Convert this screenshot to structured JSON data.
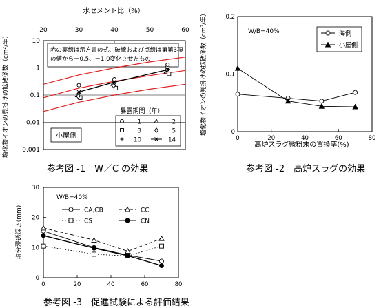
{
  "chart_data": [
    {
      "type": "scatter",
      "caption": "参考図 -1　W／C の効果",
      "top_axis_label": "水セメント比（%）",
      "top_ticks": [
        "20",
        "30",
        "40",
        "50",
        "60"
      ],
      "xlim": [
        20,
        60
      ],
      "ylabel": "塩化物イオンの見掛けの拡散係数（cm²/年）",
      "ylim": [
        0.001,
        10
      ],
      "ylog": true,
      "y_ticks": [
        "0.001",
        "0.01",
        "0.1",
        "1",
        "10"
      ],
      "grid": "horizontal",
      "note": "赤の実線は示方書の式、破線および点線は第第3項の値から－0.5、－1.0変化させたもの",
      "location_label": "小屋側",
      "legend_title": "暴露期間（年）",
      "series": [
        {
          "name": "1",
          "marker": "circle",
          "points": [
            [
              30,
              0.23
            ],
            [
              40,
              0.38
            ],
            [
              55,
              1.1
            ],
            [
              55,
              1.3
            ]
          ]
        },
        {
          "name": "2",
          "marker": "triangle",
          "points": [
            [
              30,
              0.1
            ],
            [
              40,
              0.26
            ],
            [
              55,
              0.75
            ]
          ]
        },
        {
          "name": "3",
          "marker": "square",
          "points": [
            [
              30,
              0.08
            ],
            [
              40,
              0.18
            ],
            [
              55,
              0.6
            ]
          ]
        },
        {
          "name": "5",
          "marker": "diamond",
          "points": [
            [
              30,
              0.09
            ],
            [
              40,
              0.22
            ],
            [
              55,
              0.85
            ]
          ]
        },
        {
          "name": "10",
          "marker": "plus",
          "points": [
            [
              30,
              0.12
            ],
            [
              40,
              0.28
            ],
            [
              55,
              0.9
            ]
          ]
        },
        {
          "name": "14",
          "marker": "xline",
          "points": [
            [
              30,
              0.13
            ],
            [
              40,
              0.3
            ],
            [
              55,
              0.85
            ]
          ]
        }
      ],
      "red_curves": [
        {
          "points": [
            [
              20,
              0.25
            ],
            [
              30,
              0.55
            ],
            [
              40,
              1.0
            ],
            [
              50,
              1.65
            ],
            [
              60,
              2.5
            ]
          ]
        },
        {
          "points": [
            [
              20,
              0.08
            ],
            [
              30,
              0.18
            ],
            [
              40,
              0.32
            ],
            [
              50,
              0.52
            ],
            [
              60,
              0.8
            ]
          ]
        },
        {
          "points": [
            [
              20,
              0.025
            ],
            [
              30,
              0.055
            ],
            [
              40,
              0.1
            ],
            [
              50,
              0.165
            ],
            [
              60,
              0.25
            ]
          ]
        }
      ],
      "colors": {
        "curve": "#e02020",
        "grid": "#000000",
        "marker": "#000000"
      }
    },
    {
      "type": "line",
      "caption": "参考図 -2　高炉スラグの効果",
      "ylabel": "塩化物イオンの見掛けの拡散係数（cm²/年）",
      "xlabel": "高炉スラグ微粉末の置換率(%)",
      "xlim": [
        0,
        80
      ],
      "x_ticks": [
        "0",
        "20",
        "40",
        "60",
        "80"
      ],
      "ylim": [
        0,
        0.2
      ],
      "y_ticks": [
        "0",
        "0.1",
        "0.2"
      ],
      "annotation": "W/B=40%",
      "series": [
        {
          "name": "海側",
          "marker": "circle-open",
          "x": [
            0,
            30,
            50,
            70
          ],
          "y": [
            0.065,
            0.058,
            0.053,
            0.068
          ]
        },
        {
          "name": "小屋側",
          "marker": "triangle-filled",
          "x": [
            0,
            30,
            50,
            70
          ],
          "y": [
            0.11,
            0.053,
            0.044,
            0.043
          ]
        }
      ]
    },
    {
      "type": "line",
      "caption": "参考図 -3　促進試験による評価結果",
      "ylabel": "塩分浸透深さ(mm)",
      "xlim": [
        0,
        80
      ],
      "x_ticks": [
        "0",
        "20",
        "40",
        "60",
        "80"
      ],
      "ylim": [
        0,
        30
      ],
      "y_ticks": [
        "0",
        "10",
        "20",
        "30"
      ],
      "annotation": "W/B=40%",
      "series": [
        {
          "name": "CA,CB",
          "marker": "circle-open",
          "dash": "solid",
          "x": [
            0,
            30,
            50,
            70
          ],
          "y": [
            15.5,
            10,
            7.5,
            5.5
          ]
        },
        {
          "name": "CC",
          "marker": "triangle-open",
          "dash": "dashed",
          "x": [
            0,
            30,
            50,
            70
          ],
          "y": [
            16.5,
            12.5,
            8.8,
            13
          ]
        },
        {
          "name": "CS",
          "marker": "square-open",
          "dash": "dotted",
          "x": [
            0,
            30,
            50,
            70
          ],
          "y": [
            10.5,
            7.8,
            7.2,
            10.5
          ]
        },
        {
          "name": "CN",
          "marker": "circle-filled",
          "dash": "solid",
          "x": [
            0,
            30,
            50,
            70
          ],
          "y": [
            14,
            9.8,
            7.3,
            4
          ]
        }
      ]
    }
  ]
}
